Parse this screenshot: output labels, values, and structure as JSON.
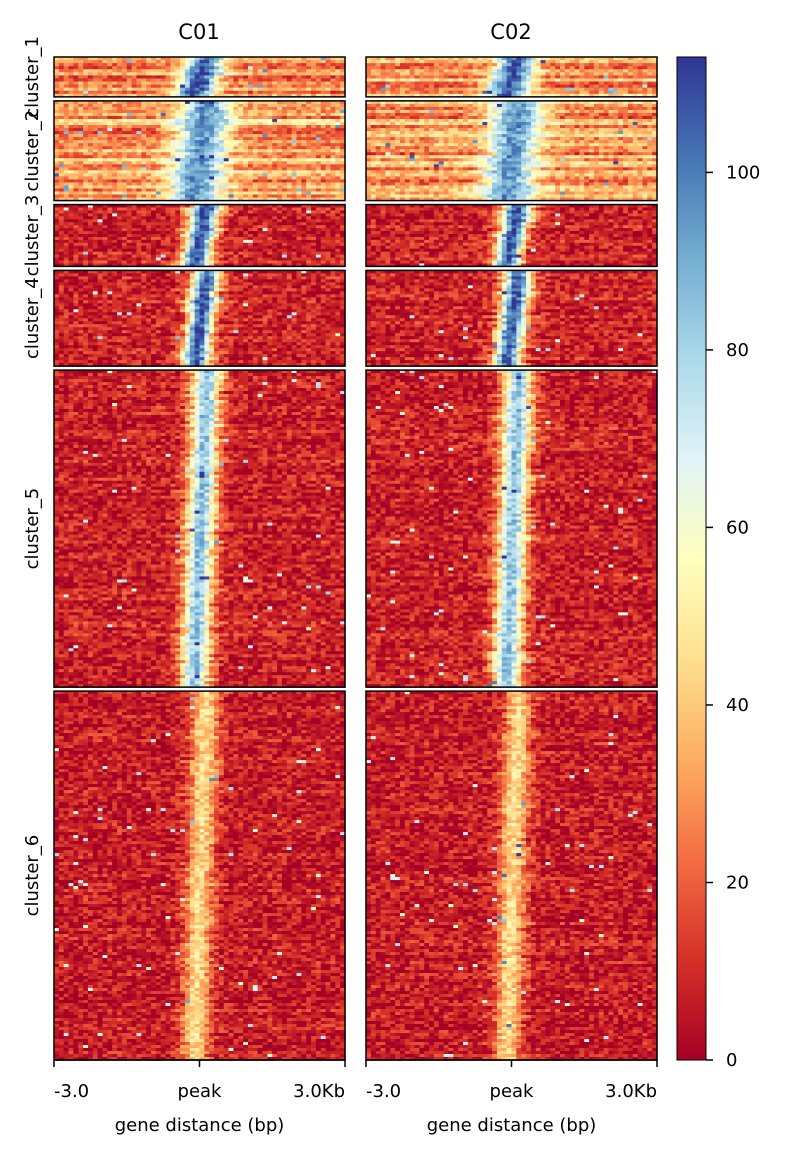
{
  "chart_data": {
    "type": "heatmap",
    "title": "",
    "samples": [
      "C01",
      "C02"
    ],
    "clusters": [
      "cluster_1",
      "cluster_2",
      "cluster_3",
      "cluster_4",
      "cluster_5",
      "cluster_6"
    ],
    "cluster_row_weights": [
      40,
      100,
      62,
      96,
      318,
      370
    ],
    "x_ticks": [
      "-3.0",
      "peak",
      "3.0Kb"
    ],
    "x_range_kb": [
      -3.0,
      3.0
    ],
    "xlabel": "gene distance (bp)",
    "colorbar": {
      "ticks": [
        0,
        20,
        40,
        60,
        80,
        100
      ],
      "range": [
        0,
        113
      ],
      "colormap": "RdYlBu",
      "stops": [
        "#a50026",
        "#d73027",
        "#f46d43",
        "#fdae61",
        "#fee090",
        "#ffffbf",
        "#e0f3f8",
        "#abd9e9",
        "#74add1",
        "#4575b4",
        "#313695"
      ]
    },
    "cluster_peak_signal": [
      {
        "cluster": "cluster_1",
        "center": 108,
        "background": 30,
        "width_kb": 0.4
      },
      {
        "cluster": "cluster_2",
        "center": 95,
        "background": 32,
        "width_kb": 0.55
      },
      {
        "cluster": "cluster_3",
        "center": 110,
        "background": 8,
        "width_kb": 0.3
      },
      {
        "cluster": "cluster_4",
        "center": 108,
        "background": 8,
        "width_kb": 0.28
      },
      {
        "cluster": "cluster_5",
        "center": 85,
        "background": 8,
        "width_kb": 0.3
      },
      {
        "cluster": "cluster_6",
        "center": 45,
        "background": 7,
        "width_kb": 0.28
      }
    ]
  }
}
